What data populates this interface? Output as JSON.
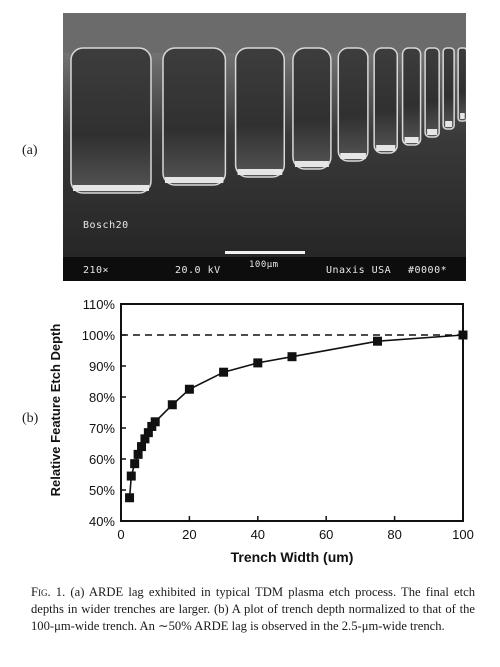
{
  "panel_a_label": "(a)",
  "panel_b_label": "(b)",
  "sem": {
    "sample_label": "Bosch20",
    "magnification": "210×",
    "voltage": "20.0 kV",
    "scale_label": "100μm",
    "vendor": "Unaxis USA",
    "image_id": "#0000*"
  },
  "chart_data": {
    "type": "line",
    "xlabel": "Trench Width (um)",
    "ylabel": "Relative Feature Etch Depth",
    "xlim": [
      0,
      100
    ],
    "ylim": [
      40,
      110
    ],
    "x_ticks": [
      "0",
      "20",
      "40",
      "60",
      "80",
      "100"
    ],
    "y_ticks": [
      "40%",
      "50%",
      "60%",
      "70%",
      "80%",
      "90%",
      "100%",
      "110%"
    ],
    "reference_line": 100,
    "series": [
      {
        "x": [
          2.5,
          3,
          4,
          5,
          6,
          7,
          8,
          9,
          10,
          15,
          20,
          30,
          40,
          50,
          75,
          100
        ],
        "values": [
          47.5,
          54.5,
          58.5,
          61.5,
          64,
          66.5,
          68.5,
          70.5,
          72,
          77.5,
          82.5,
          88,
          91,
          93,
          98,
          100
        ]
      }
    ],
    "grid": false,
    "marker": "square"
  },
  "caption": {
    "fig_label": "Fig. 1.",
    "text": " (a) ARDE lag exhibited in typical TDM plasma etch process. The final etch depths in wider trenches are larger. (b) A plot of trench depth normalized to that of the 100-μm-wide trench. An ∼50% ARDE lag is observed in the 2.5-μm-wide trench."
  }
}
